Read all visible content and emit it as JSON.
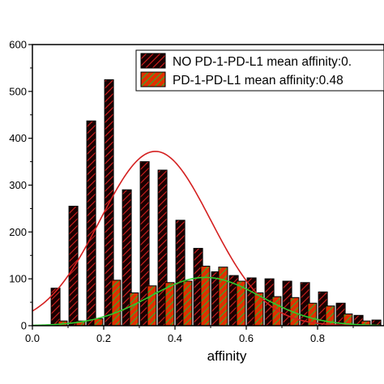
{
  "chart_data": {
    "type": "bar",
    "title": "",
    "xlabel": "affinity",
    "ylabel": "",
    "xlim": [
      0.0,
      0.975
    ],
    "ylim": [
      0,
      600
    ],
    "x_ticks": [
      0.0,
      0.2,
      0.4,
      0.6,
      0.8
    ],
    "x_tick_labels": [
      "0.0",
      "0.2",
      "0.4",
      "0.6",
      "0.8"
    ],
    "y_ticks": [
      0,
      100,
      200,
      300,
      400,
      500,
      600
    ],
    "y_tick_labels": [
      "0",
      "100",
      "200",
      "300",
      "400",
      "500",
      "600"
    ],
    "legend_position": "top-right",
    "series": [
      {
        "name": "NO PD-1-PD-L1  mean affinity:0.",
        "fill_color": "#1a0000",
        "hatch_color": "#d42020",
        "x": [
          0.065,
          0.115,
          0.165,
          0.215,
          0.265,
          0.315,
          0.365,
          0.415,
          0.465,
          0.515,
          0.565,
          0.615,
          0.665,
          0.715,
          0.765,
          0.815,
          0.865,
          0.915,
          0.965
        ],
        "values": [
          80,
          255,
          437,
          525,
          290,
          350,
          332,
          225,
          165,
          115,
          107,
          102,
          100,
          95,
          92,
          72,
          48,
          22,
          12
        ]
      },
      {
        "name": "PD-1-PD-L1 mean affinity:0.48",
        "fill_color": "#e03000",
        "hatch_color": "#2ab42a",
        "x": [
          0.085,
          0.135,
          0.185,
          0.235,
          0.285,
          0.335,
          0.385,
          0.435,
          0.485,
          0.535,
          0.585,
          0.635,
          0.685,
          0.735,
          0.785,
          0.835,
          0.885,
          0.935
        ],
        "values": [
          10,
          10,
          15,
          97,
          70,
          85,
          92,
          95,
          127,
          125,
          95,
          70,
          62,
          60,
          48,
          42,
          25,
          10
        ]
      }
    ],
    "fit_curves": [
      {
        "series": "NO PD-1-PD-L1  mean affinity:0.",
        "color": "#d42020",
        "peak": 372,
        "center": 0.345,
        "sigma": 0.155
      },
      {
        "series": "PD-1-PD-L1 mean affinity:0.48",
        "color": "#2ecc2e",
        "peak": 103,
        "center": 0.485,
        "sigma": 0.155
      }
    ]
  }
}
